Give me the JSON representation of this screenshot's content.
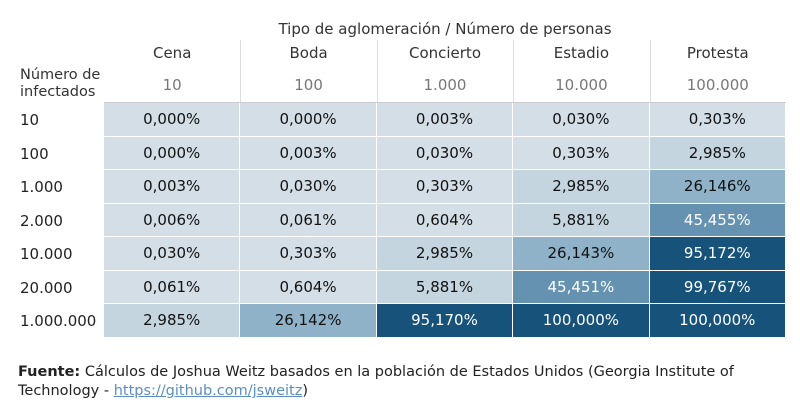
{
  "chart_data": {
    "type": "heatmap",
    "title": "Tipo de aglomeración  /  Número de personas",
    "row_axis_label": [
      "Número de",
      "infectados"
    ],
    "columns": [
      {
        "name": "Cena",
        "size": "10"
      },
      {
        "name": "Boda",
        "size": "100"
      },
      {
        "name": "Concierto",
        "size": "1.000"
      },
      {
        "name": "Estadio",
        "size": "10.000"
      },
      {
        "name": "Protesta",
        "size": "100.000"
      }
    ],
    "rows": [
      {
        "label": "10",
        "values": [
          "0,000%",
          "0,000%",
          "0,003%",
          "0,030%",
          "0,303%"
        ],
        "numeric": [
          0.0,
          0.0,
          0.003,
          0.03,
          0.303
        ]
      },
      {
        "label": "100",
        "values": [
          "0,000%",
          "0,003%",
          "0,030%",
          "0,303%",
          "2,985%"
        ],
        "numeric": [
          0.0,
          0.003,
          0.03,
          0.303,
          2.985
        ]
      },
      {
        "label": "1.000",
        "values": [
          "0,003%",
          "0,030%",
          "0,303%",
          "2,985%",
          "26,146%"
        ],
        "numeric": [
          0.003,
          0.03,
          0.303,
          2.985,
          26.146
        ]
      },
      {
        "label": "2.000",
        "values": [
          "0,006%",
          "0,061%",
          "0,604%",
          "5,881%",
          "45,455%"
        ],
        "numeric": [
          0.006,
          0.061,
          0.604,
          5.881,
          45.455
        ]
      },
      {
        "label": "10.000",
        "values": [
          "0,030%",
          "0,303%",
          "2,985%",
          "26,143%",
          "95,172%"
        ],
        "numeric": [
          0.03,
          0.303,
          2.985,
          26.143,
          95.172
        ]
      },
      {
        "label": "20.000",
        "values": [
          "0,061%",
          "0,604%",
          "5,881%",
          "45,451%",
          "99,767%"
        ],
        "numeric": [
          0.061,
          0.604,
          5.881,
          45.451,
          99.767
        ]
      },
      {
        "label": "1.000.000",
        "values": [
          "2,985%",
          "26,142%",
          "95,170%",
          "100,000%",
          "100,000%"
        ],
        "numeric": [
          2.985,
          26.142,
          95.17,
          100.0,
          100.0
        ]
      }
    ]
  },
  "footer": {
    "source_label": "Fuente:",
    "source_text": "Cálculos de Joshua Weitz basados en la población de Estados Unidos (Georgia Institute of Technology -",
    "link_text": "https://github.com/jsweitz",
    "closing": ")"
  },
  "colors": {
    "lightest": "#d3dee6",
    "light": "#c5d5e0",
    "medium": "#8fb2c8",
    "strong": "#6592b0",
    "darkest": "#17527a",
    "dark_text": "#ffffff",
    "light_text": "#111111"
  }
}
